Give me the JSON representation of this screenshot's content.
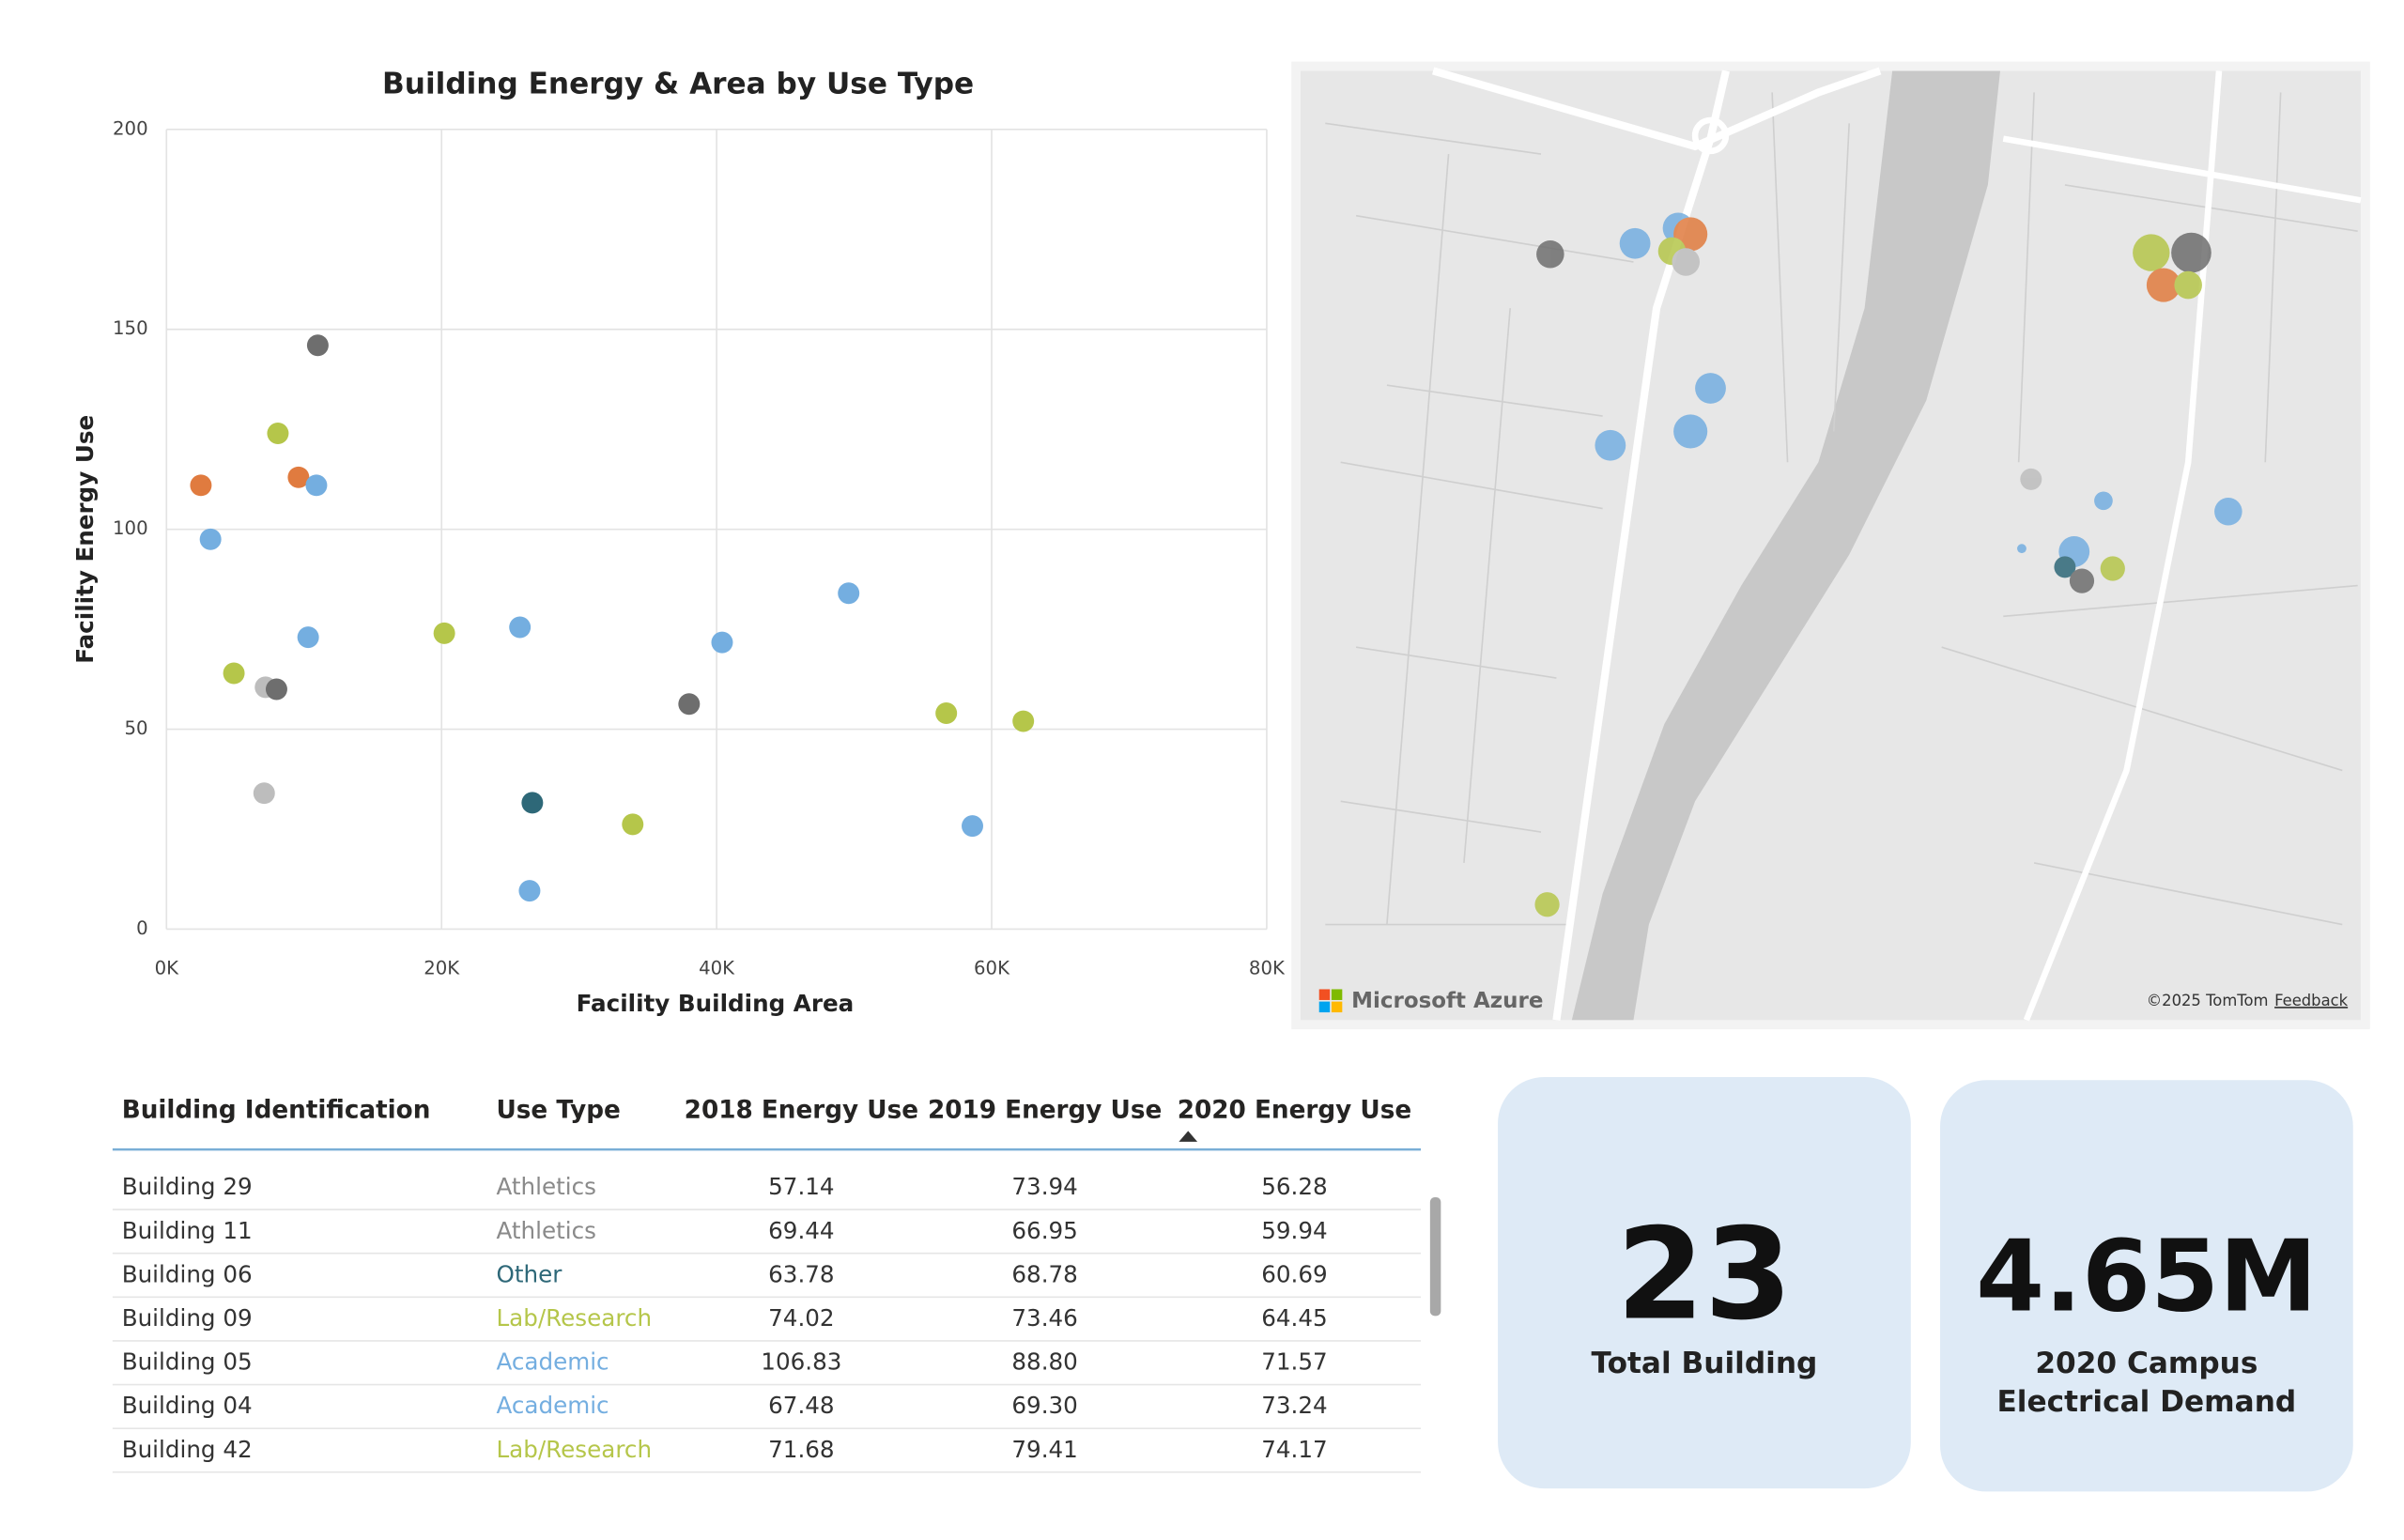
{
  "chart_data": {
    "type": "scatter",
    "title": "Building Energy & Area by Use Type",
    "x_label": "Facility Building Area",
    "y_label": "Facility Energy Use",
    "x": [
      11000,
      8100,
      2500,
      9600,
      10900,
      3200,
      10300,
      4900,
      7200,
      8000,
      7100,
      20200,
      25700,
      26600,
      26400,
      33900,
      38000,
      40400,
      49600,
      56700,
      62300,
      58600
    ],
    "values": [
      146,
      124,
      111,
      113,
      111,
      97.5,
      73,
      64,
      60.5,
      60,
      34,
      74,
      75.5,
      31.6,
      9.6,
      26.2,
      56.3,
      71.7,
      84,
      54,
      52,
      25.8
    ],
    "colors": [
      "#6e6e6e",
      "#b5c64a",
      "#e07b3f",
      "#e07b3f",
      "#74aee0",
      "#74aee0",
      "#74aee0",
      "#b5c64a",
      "#bdbdbd",
      "#6e6e6e",
      "#bdbdbd",
      "#b5c64a",
      "#74aee0",
      "#2e6878",
      "#74aee0",
      "#b5c64a",
      "#6e6e6e",
      "#74aee0",
      "#74aee0",
      "#b5c64a",
      "#b5c64a",
      "#74aee0"
    ],
    "xlim": [
      0,
      80000
    ],
    "ylim": [
      0,
      200
    ],
    "xticks": [
      {
        "value": 0,
        "label": "0K"
      },
      {
        "value": 20000,
        "label": "20K"
      },
      {
        "value": 40000,
        "label": "40K"
      },
      {
        "value": 60000,
        "label": "60K"
      },
      {
        "value": 80000,
        "label": "80K"
      }
    ],
    "yticks": [
      0,
      50,
      100,
      150,
      200
    ],
    "grid": true
  },
  "map": {
    "brand": "Microsoft Azure",
    "copyright": "©2025 TomTom",
    "feedback": "Feedback"
  },
  "table": {
    "headers": [
      "Building Identification",
      "Use Type",
      "2018 Energy Use",
      "2019 Energy Use",
      "2020 Energy Use"
    ],
    "rows": [
      [
        "Building 29",
        "Athletics",
        "57.14",
        "73.94",
        "56.28"
      ],
      [
        "Building 11",
        "Athletics",
        "69.44",
        "66.95",
        "59.94"
      ],
      [
        "Building 06",
        "Other",
        "63.78",
        "68.78",
        "60.69"
      ],
      [
        "Building 09",
        "Lab/Research",
        "74.02",
        "73.46",
        "64.45"
      ],
      [
        "Building 05",
        "Academic",
        "106.83",
        "88.80",
        "71.57"
      ],
      [
        "Building 04",
        "Academic",
        "67.48",
        "69.30",
        "73.24"
      ],
      [
        "Building 42",
        "Lab/Research",
        "71.68",
        "79.41",
        "74.17"
      ]
    ],
    "type_colors": {
      "Athletics": "#8a8a8a",
      "Other": "#2e6878",
      "Lab/Research": "#b5c64a",
      "Academic": "#74aee0"
    }
  },
  "cards": [
    {
      "value": "23",
      "label": "Total Building"
    },
    {
      "value": "4.65M",
      "label": "2020 Campus Electrical Demand"
    }
  ]
}
